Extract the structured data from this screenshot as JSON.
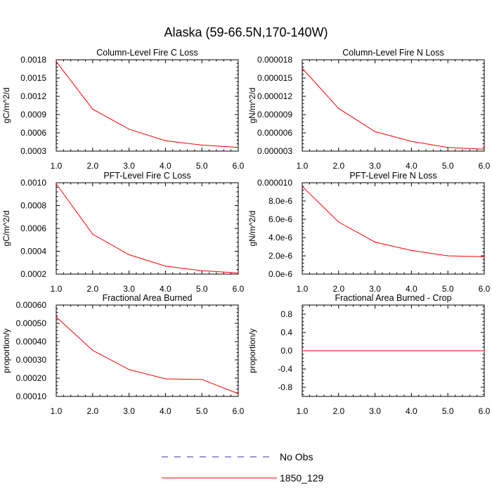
{
  "title": "Alaska (59-66.5N,170-140W)",
  "legend": [
    {
      "label": "No Obs",
      "style": "dashed",
      "color": "#3030a0"
    },
    {
      "label": "1850_129",
      "style": "solid",
      "color": "#ff0000"
    }
  ],
  "chart_data": [
    {
      "type": "line",
      "title": "Column-Level Fire C Loss",
      "ylabel": "gC/m^2/d",
      "xlim": [
        1.0,
        6.0
      ],
      "ylim": [
        0.0003,
        0.0018
      ],
      "xticks": [
        "1.0",
        "2.0",
        "3.0",
        "4.0",
        "5.0",
        "6.0"
      ],
      "yticks": [
        "0.0003",
        "0.0006",
        "0.0009",
        "0.0012",
        "0.0015",
        "0.0018"
      ],
      "series": [
        {
          "name": "1850_129",
          "color": "#ff0000",
          "x": [
            1,
            2,
            3,
            4,
            5,
            6
          ],
          "y": [
            0.00177,
            0.00099,
            0.00066,
            0.00047,
            0.0004,
            0.00036
          ]
        }
      ]
    },
    {
      "type": "line",
      "title": "Column-Level Fire N Loss",
      "ylabel": "gN/m^2/d",
      "xlim": [
        1.0,
        6.0
      ],
      "ylim": [
        3e-06,
        1.8e-05
      ],
      "xticks": [
        "1.0",
        "2.0",
        "3.0",
        "4.0",
        "5.0",
        "6.0"
      ],
      "yticks": [
        "0.000003",
        "0.000006",
        "0.000009",
        "0.000012",
        "0.000015",
        "0.000018"
      ],
      "series": [
        {
          "name": "1850_129",
          "color": "#ff0000",
          "x": [
            1,
            2,
            3,
            4,
            5,
            6
          ],
          "y": [
            1.66e-05,
            1e-05,
            6.2e-06,
            4.6e-06,
            3.6e-06,
            3.3e-06
          ]
        }
      ]
    },
    {
      "type": "line",
      "title": "PFT-Level Fire C Loss",
      "ylabel": "gC/m^2/d",
      "xlim": [
        1.0,
        6.0
      ],
      "ylim": [
        0.0002,
        0.001
      ],
      "xticks": [
        "1.0",
        "2.0",
        "3.0",
        "4.0",
        "5.0",
        "6.0"
      ],
      "yticks": [
        "0.0002",
        "0.0004",
        "0.0006",
        "0.0008",
        "0.0010"
      ],
      "series": [
        {
          "name": "1850_129",
          "color": "#ff0000",
          "x": [
            1,
            2,
            3,
            4,
            5,
            6
          ],
          "y": [
            0.00099,
            0.00055,
            0.00037,
            0.00027,
            0.00023,
            0.00021
          ]
        }
      ]
    },
    {
      "type": "line",
      "title": "PFT-Level Fire N Loss",
      "ylabel": "gN/m^2/d",
      "xlim": [
        1.0,
        6.0
      ],
      "ylim": [
        0.0,
        1e-05
      ],
      "xticks": [
        "1.0",
        "2.0",
        "3.0",
        "4.0",
        "5.0",
        "6.0"
      ],
      "yticks": [
        "0.0e-6",
        "2.0e-6",
        "4.0e-6",
        "6.0e-6",
        "8.0e-6",
        "0.000010"
      ],
      "series": [
        {
          "name": "1850_129",
          "color": "#ff0000",
          "x": [
            1,
            2,
            3,
            4,
            5,
            6
          ],
          "y": [
            9.6e-06,
            5.7e-06,
            3.5e-06,
            2.6e-06,
            2e-06,
            1.9e-06
          ]
        }
      ]
    },
    {
      "type": "line",
      "title": "Fractional Area Burned",
      "ylabel": "proportion/y",
      "xlim": [
        1.0,
        6.0
      ],
      "ylim": [
        0.0001,
        0.0006
      ],
      "xticks": [
        "1.0",
        "2.0",
        "3.0",
        "4.0",
        "5.0",
        "6.0"
      ],
      "yticks": [
        "0.00010",
        "0.00020",
        "0.00030",
        "0.00040",
        "0.00050",
        "0.00060"
      ],
      "series": [
        {
          "name": "1850_129",
          "color": "#ff0000",
          "x": [
            1,
            2,
            3,
            4,
            5,
            6
          ],
          "y": [
            0.000535,
            0.000352,
            0.000247,
            0.000196,
            0.000193,
            0.000115
          ]
        }
      ]
    },
    {
      "type": "line",
      "title": "Fractional Area Burned - Crop",
      "ylabel": "proportion/y",
      "xlim": [
        1.0,
        6.0
      ],
      "ylim": [
        -1.0,
        1.0
      ],
      "xticks": [
        "1.0",
        "2.0",
        "3.0",
        "4.0",
        "5.0",
        "6.0"
      ],
      "yticks": [
        "-0.8",
        "-0.4",
        "0.0",
        "0.4",
        "0.8"
      ],
      "ytick_values": [
        -0.8,
        -0.4,
        0.0,
        0.4,
        0.8
      ],
      "series": [
        {
          "name": "1850_129",
          "color": "#ff0000",
          "x": [
            1,
            2,
            3,
            4,
            5,
            6
          ],
          "y": [
            0,
            0,
            0,
            0,
            0,
            0
          ]
        }
      ]
    }
  ]
}
